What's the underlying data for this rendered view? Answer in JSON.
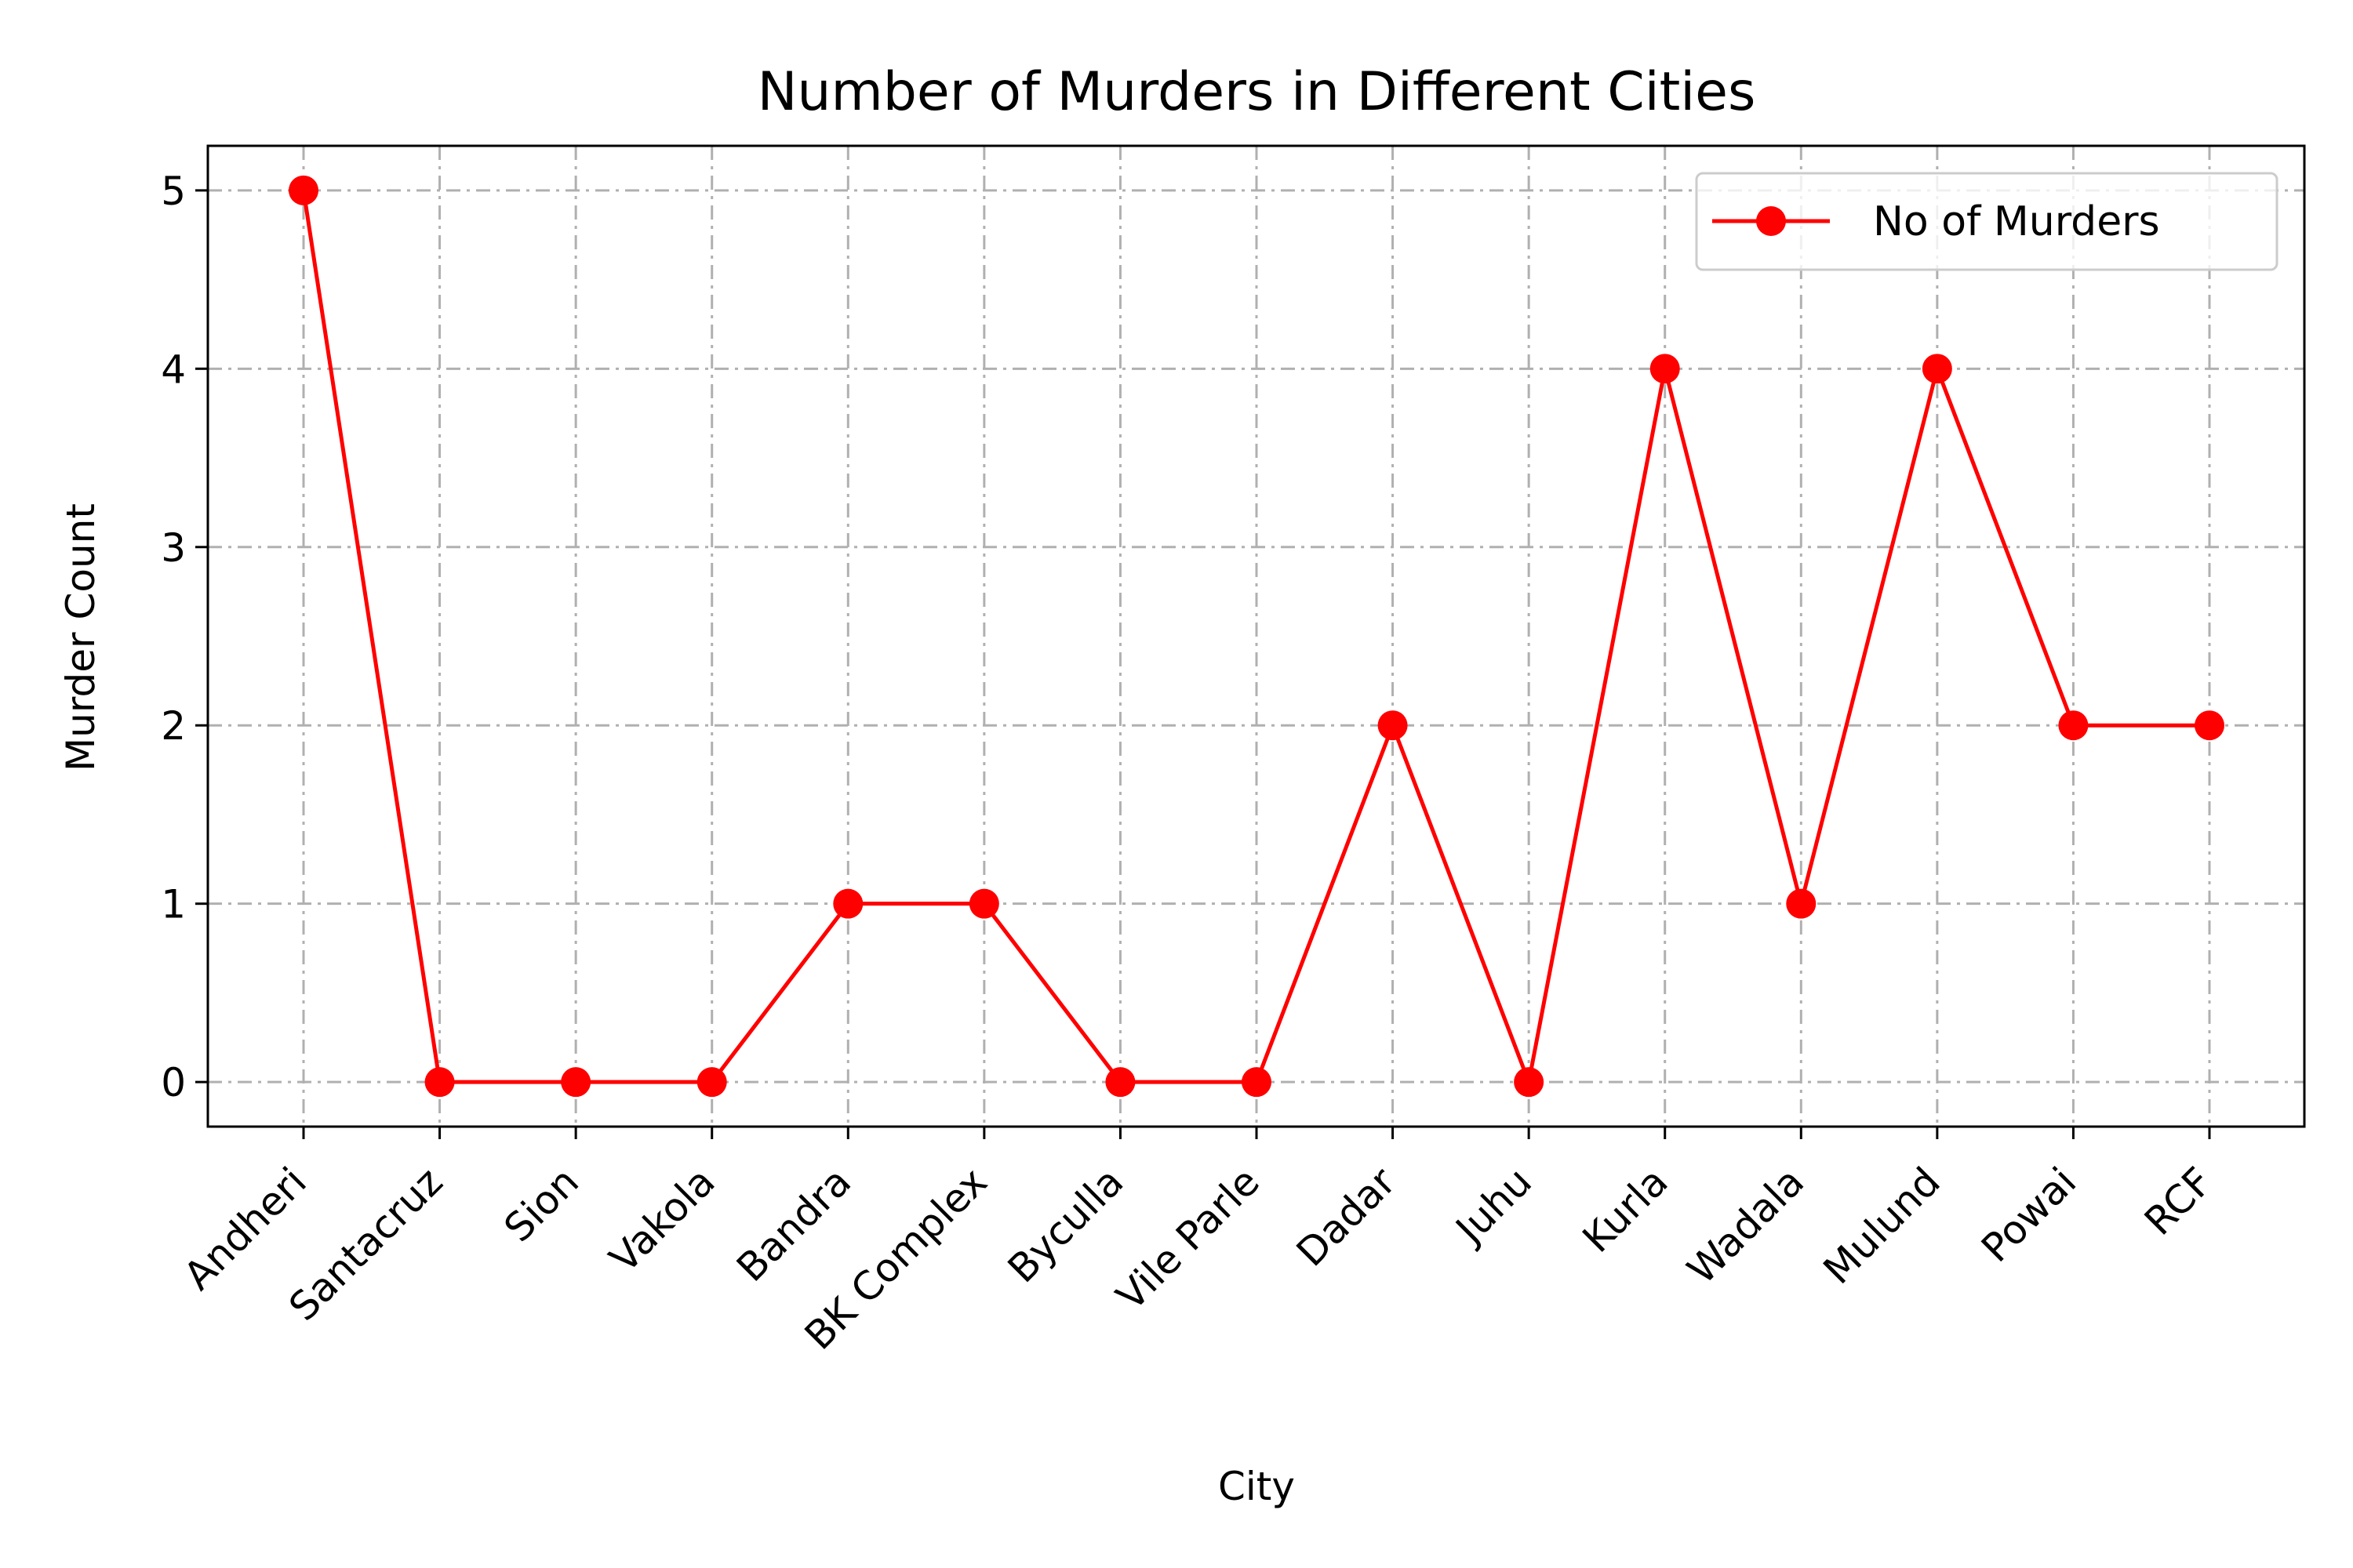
{
  "chart_data": {
    "type": "line",
    "title": "Number of Murders in Different Cities",
    "xlabel": "City",
    "ylabel": "Murder Count",
    "categories": [
      "Andheri",
      "Santacruz",
      "Sion",
      "Vakola",
      "Bandra",
      "BK Complex",
      "Byculla",
      "Vile Parle",
      "Dadar",
      "Juhu",
      "Kurla",
      "Wadala",
      "Mulund",
      "Powai",
      "RCF"
    ],
    "series": [
      {
        "name": "No of Murders",
        "values": [
          5,
          0,
          0,
          0,
          1,
          1,
          0,
          0,
          2,
          0,
          4,
          1,
          4,
          2,
          2
        ],
        "color": "#ff0000",
        "marker": "circle"
      }
    ],
    "ylim": [
      -0.25,
      5.25
    ],
    "yticks": [
      0,
      1,
      2,
      3,
      4,
      5
    ],
    "grid": true,
    "grid_style": "dash-dot",
    "legend_position": "top-right"
  }
}
